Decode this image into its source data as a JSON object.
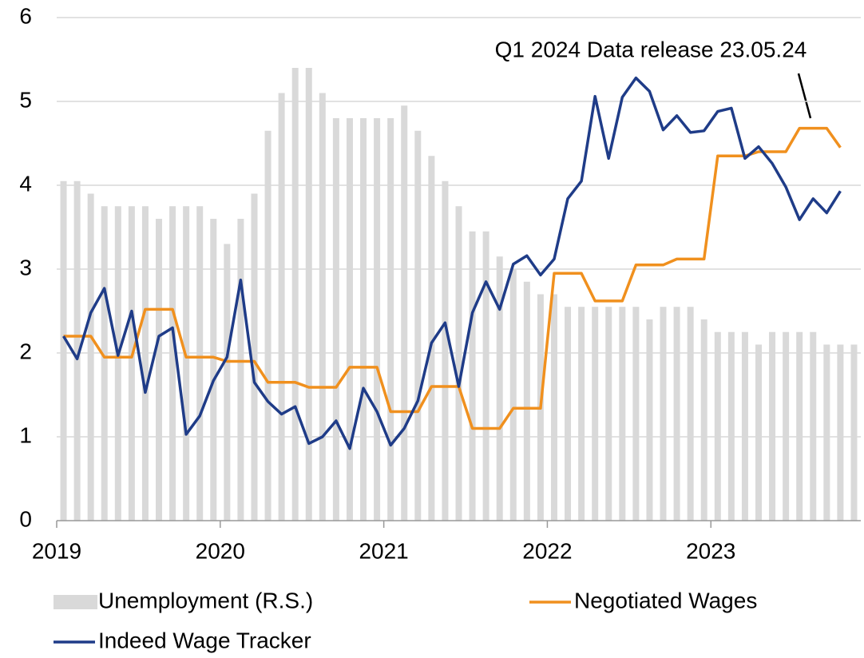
{
  "chart_data": {
    "type": "bar_line",
    "annotation": "Q1 2024 Data release 23.05.24",
    "categories": [
      "2019",
      null,
      null,
      null,
      null,
      null,
      null,
      null,
      null,
      null,
      null,
      null,
      "2020",
      null,
      null,
      null,
      null,
      null,
      null,
      null,
      null,
      null,
      null,
      null,
      "2021",
      null,
      null,
      null,
      null,
      null,
      null,
      null,
      null,
      null,
      null,
      null,
      "2022",
      null,
      null,
      null,
      null,
      null,
      null,
      null,
      null,
      null,
      null,
      null,
      "2023",
      null,
      null,
      null,
      null,
      null,
      null,
      null,
      null,
      null,
      null
    ],
    "series": [
      {
        "name": "Unemployment (R.S.)",
        "kind": "bar",
        "color": "#d9d9d9",
        "values": [
          4.05,
          4.05,
          3.9,
          3.75,
          3.75,
          3.75,
          3.75,
          3.6,
          3.75,
          3.75,
          3.75,
          3.6,
          3.3,
          3.6,
          3.9,
          4.65,
          5.1,
          5.4,
          5.4,
          5.1,
          4.8,
          4.8,
          4.8,
          4.8,
          4.8,
          4.95,
          4.65,
          4.35,
          4.05,
          3.75,
          3.45,
          3.45,
          3.15,
          3.0,
          2.85,
          2.7,
          2.7,
          2.55,
          2.55,
          2.55,
          2.55,
          2.55,
          2.55,
          2.4,
          2.55,
          2.55,
          2.55,
          2.4,
          2.25,
          2.25,
          2.25,
          2.1,
          2.25,
          2.25,
          2.25,
          2.25,
          2.1,
          2.1,
          2.1
        ]
      },
      {
        "name": "Negotiated Wages",
        "kind": "line",
        "color": "#f0901e",
        "values": [
          2.2,
          2.2,
          2.2,
          1.95,
          1.95,
          1.95,
          2.52,
          2.52,
          2.52,
          1.95,
          1.95,
          1.95,
          1.9,
          1.9,
          1.9,
          1.65,
          1.65,
          1.65,
          1.59,
          1.59,
          1.59,
          1.83,
          1.83,
          1.83,
          1.3,
          1.3,
          1.3,
          1.6,
          1.6,
          1.6,
          1.1,
          1.1,
          1.1,
          1.34,
          1.34,
          1.34,
          2.95,
          2.95,
          2.95,
          2.62,
          2.62,
          2.62,
          3.05,
          3.05,
          3.05,
          3.12,
          3.12,
          3.12,
          4.35,
          4.35,
          4.35,
          4.4,
          4.4,
          4.4,
          4.68,
          4.68,
          4.68,
          4.45,
          null
        ]
      },
      {
        "name": "Indeed Wage Tracker",
        "kind": "line",
        "color": "#1f3c88",
        "values": [
          2.2,
          1.93,
          2.48,
          2.77,
          1.97,
          2.5,
          1.53,
          2.2,
          2.3,
          1.03,
          1.25,
          1.67,
          1.95,
          2.87,
          1.65,
          1.42,
          1.27,
          1.36,
          0.92,
          1.0,
          1.19,
          0.86,
          1.58,
          1.3,
          0.9,
          1.1,
          1.43,
          2.12,
          2.36,
          1.6,
          2.48,
          2.85,
          2.52,
          3.06,
          3.16,
          2.93,
          3.12,
          3.84,
          4.05,
          5.06,
          4.32,
          5.05,
          5.28,
          5.12,
          4.66,
          4.83,
          4.63,
          4.65,
          4.88,
          4.92,
          4.32,
          4.46,
          4.26,
          3.98,
          3.59,
          3.84,
          3.67,
          3.93,
          null
        ]
      }
    ],
    "ylim": [
      0,
      6
    ],
    "yticks": [
      0,
      1,
      2,
      3,
      4,
      5,
      6
    ],
    "grid": true
  }
}
